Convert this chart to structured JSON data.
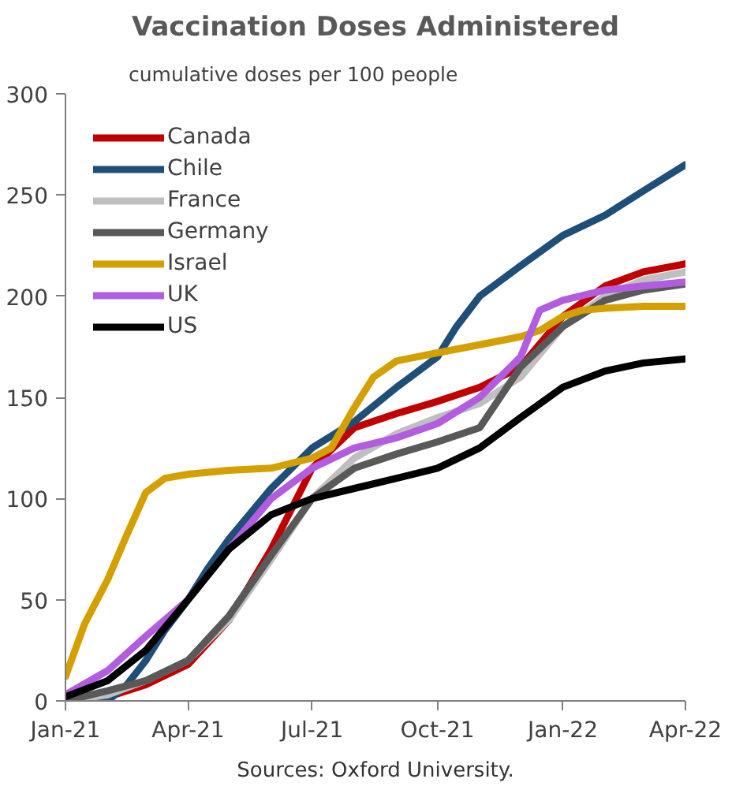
{
  "chart_data": {
    "type": "line",
    "title": "Vaccination Doses Administered",
    "subtitle": "cumulative doses per 100 people",
    "annotations": [
      "Sources: Oxford University."
    ],
    "xlim": [
      "2021-01-01",
      "2022-04-01"
    ],
    "xticks": [
      {
        "value": "2021-01-01",
        "label": "Jan-21"
      },
      {
        "value": "2021-04-01",
        "label": "Apr-21"
      },
      {
        "value": "2021-07-01",
        "label": "Jul-21"
      },
      {
        "value": "2021-10-01",
        "label": "Oct-21"
      },
      {
        "value": "2022-01-01",
        "label": "Jan-22"
      },
      {
        "value": "2022-04-01",
        "label": "Apr-22"
      }
    ],
    "ylim": [
      0,
      300
    ],
    "yticks": [
      0,
      50,
      100,
      150,
      200,
      250,
      300
    ],
    "grid": false,
    "legend": "top left",
    "marker": "none",
    "line_style": "solid",
    "x": [
      "2021-01-01",
      "2021-02-01",
      "2021-03-01",
      "2021-04-01",
      "2021-05-01",
      "2021-06-01",
      "2021-07-01",
      "2021-08-01",
      "2021-09-01",
      "2021-10-01",
      "2021-11-01",
      "2021-12-01",
      "2022-01-01",
      "2022-02-01",
      "2022-03-01",
      "2022-04-01"
    ],
    "series": [
      {
        "name": "Canada",
        "color": "#c00000",
        "values": [
          0,
          2,
          8,
          18,
          40,
          75,
          115,
          135,
          142,
          148,
          155,
          165,
          190,
          205,
          212,
          216
        ]
      },
      {
        "name": "Chile",
        "color": "#1f4e79",
        "x": [
          "2021-01-01",
          "2021-02-01",
          "2021-02-15",
          "2021-03-01",
          "2021-03-15",
          "2021-04-01",
          "2021-04-15",
          "2021-05-01",
          "2021-06-01",
          "2021-07-01",
          "2021-08-01",
          "2021-09-01",
          "2021-10-01",
          "2021-10-15",
          "2021-11-01",
          "2021-12-01",
          "2022-01-01",
          "2022-02-01",
          "2022-03-01",
          "2022-04-01"
        ],
        "values": [
          0,
          0,
          8,
          20,
          35,
          50,
          65,
          80,
          105,
          125,
          138,
          155,
          170,
          185,
          200,
          215,
          230,
          240,
          252,
          265
        ]
      },
      {
        "name": "France",
        "color": "#bfbfbf",
        "values": [
          0,
          3,
          10,
          20,
          40,
          70,
          100,
          120,
          132,
          140,
          147,
          160,
          185,
          200,
          208,
          212
        ]
      },
      {
        "name": "Germany",
        "color": "#595959",
        "values": [
          0,
          5,
          10,
          20,
          42,
          72,
          100,
          115,
          122,
          128,
          135,
          165,
          185,
          198,
          203,
          206
        ]
      },
      {
        "name": "Israel",
        "color": "#d4a000",
        "x": [
          "2021-01-01",
          "2021-01-15",
          "2021-02-01",
          "2021-02-15",
          "2021-03-01",
          "2021-03-15",
          "2021-04-01",
          "2021-05-01",
          "2021-06-01",
          "2021-07-01",
          "2021-07-15",
          "2021-08-01",
          "2021-08-15",
          "2021-09-01",
          "2021-10-01",
          "2021-11-01",
          "2021-12-01",
          "2021-12-15",
          "2022-01-01",
          "2022-01-15",
          "2022-02-01",
          "2022-03-01",
          "2022-04-01"
        ],
        "values": [
          12,
          38,
          60,
          82,
          103,
          110,
          112,
          114,
          115,
          120,
          125,
          145,
          160,
          168,
          172,
          176,
          180,
          183,
          190,
          193,
          194,
          195,
          195
        ]
      },
      {
        "name": "UK",
        "color": "#b25de0",
        "x": [
          "2021-01-01",
          "2021-02-01",
          "2021-03-01",
          "2021-04-01",
          "2021-05-01",
          "2021-06-01",
          "2021-07-01",
          "2021-08-01",
          "2021-09-01",
          "2021-10-01",
          "2021-11-01",
          "2021-12-01",
          "2021-12-15",
          "2022-01-01",
          "2022-02-01",
          "2022-03-01",
          "2022-04-01"
        ],
        "values": [
          3,
          15,
          32,
          50,
          75,
          100,
          115,
          125,
          130,
          137,
          150,
          170,
          193,
          198,
          203,
          205,
          207
        ]
      },
      {
        "name": "US",
        "color": "#000000",
        "values": [
          2,
          10,
          25,
          50,
          75,
          92,
          100,
          105,
          110,
          115,
          125,
          140,
          155,
          163,
          167,
          169
        ]
      }
    ]
  }
}
